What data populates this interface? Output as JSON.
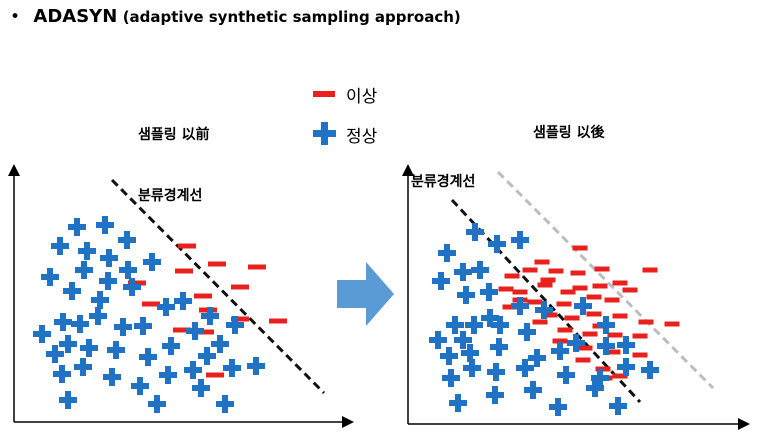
{
  "title": {
    "bullet": "•",
    "main": "ADASYN",
    "sub": "(adaptive synthetic sampling approach)"
  },
  "legend": {
    "abnormal": {
      "label": "이상",
      "color": "#e8201e",
      "icon": "minus-icon"
    },
    "normal": {
      "label": "정상",
      "color": "#1f72c4",
      "icon": "plus-icon"
    }
  },
  "panels": {
    "before": {
      "title": "샘플링 以前",
      "boundary_label": "분류경계선"
    },
    "after": {
      "title": "샘플링 以後",
      "boundary_label": "분류경계선"
    }
  },
  "colors": {
    "boundary": "#111111",
    "new_boundary": "#bdbdbd",
    "arrow": "#5b9bd5"
  }
}
